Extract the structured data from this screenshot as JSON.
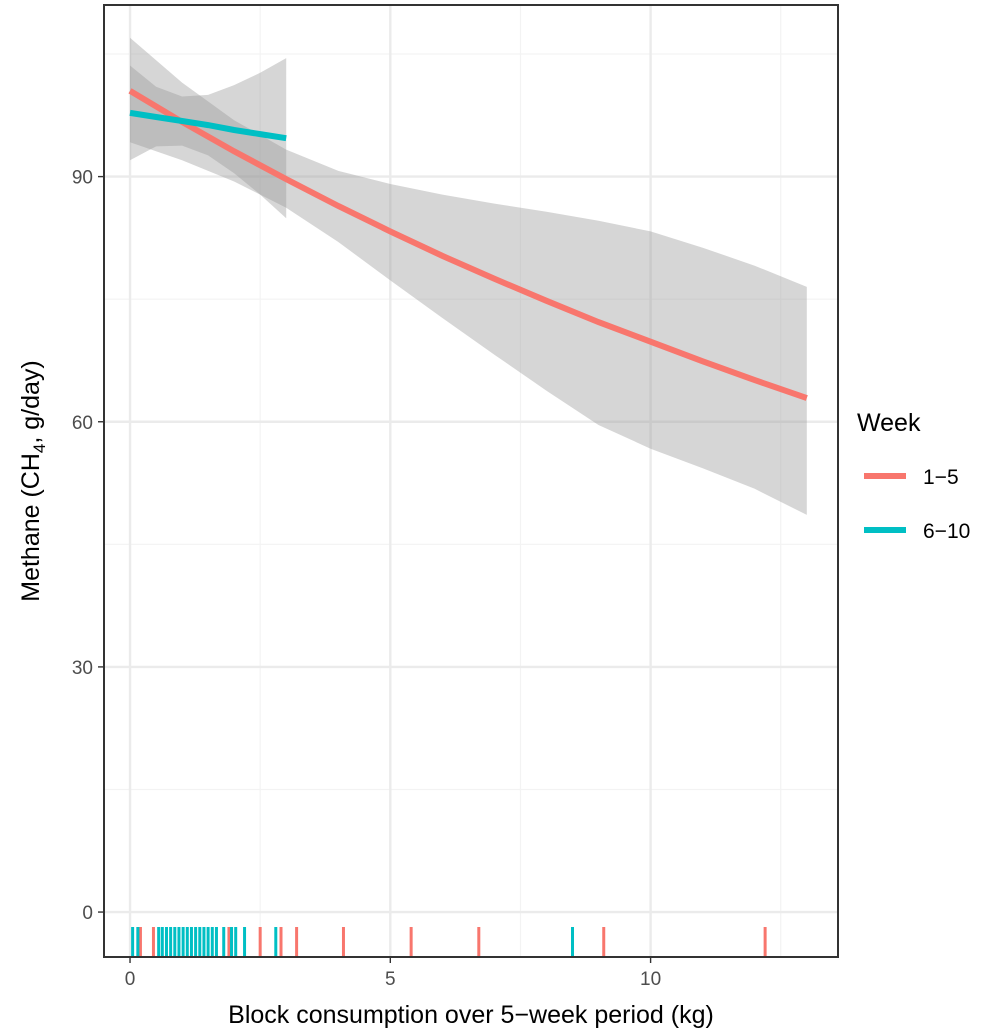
{
  "chart_data": {
    "type": "line",
    "title": "",
    "xlabel": "Block consumption over 5−week period (kg)",
    "ylabel_main": "Methane  (CH",
    "ylabel_sub": "4",
    "ylabel_rest": ", g/day)",
    "xlim": [
      -0.5,
      13.6
    ],
    "ylim": [
      -5.5,
      111
    ],
    "x_ticks": [
      0,
      5,
      10
    ],
    "x_tick_labels": [
      "0",
      "5",
      "10"
    ],
    "y_ticks": [
      0,
      30,
      60,
      90
    ],
    "y_tick_labels": [
      "0",
      "30",
      "60",
      "90"
    ],
    "grid": true,
    "legend": {
      "title": "Week",
      "position": "right",
      "entries": [
        {
          "label": "1−5",
          "color": "#F8766D"
        },
        {
          "label": "6−10",
          "color": "#00BFC4"
        }
      ]
    },
    "series": [
      {
        "name": "1−5",
        "color": "#F8766D",
        "x": [
          0,
          1,
          2,
          3,
          4,
          5,
          6,
          7,
          8,
          9,
          10,
          11,
          12,
          13
        ],
        "y": [
          100.5,
          96.7,
          93.1,
          89.7,
          86.4,
          83.3,
          80.3,
          77.5,
          74.8,
          72.2,
          69.8,
          67.4,
          65.1,
          62.9
        ],
        "ci_lower": [
          94.2,
          92.0,
          89.4,
          86.2,
          82.0,
          77.3,
          72.7,
          68.2,
          63.8,
          59.6,
          56.7,
          54.3,
          51.8,
          48.6
        ],
        "ci_upper": [
          107.0,
          101.5,
          96.9,
          93.3,
          90.7,
          89.1,
          87.8,
          86.7,
          85.7,
          84.6,
          83.3,
          81.3,
          79.1,
          76.5
        ]
      },
      {
        "name": "6−10",
        "color": "#00BFC4",
        "x": [
          0,
          0.5,
          1,
          1.5,
          2,
          2.5,
          3
        ],
        "y": [
          97.8,
          97.3,
          96.8,
          96.3,
          95.7,
          95.2,
          94.7
        ],
        "ci_lower": [
          92.0,
          93.7,
          93.8,
          92.6,
          90.4,
          87.8,
          84.9
        ],
        "ci_upper": [
          103.6,
          101.0,
          99.8,
          100.0,
          101.2,
          102.7,
          104.5
        ]
      }
    ],
    "rug": [
      {
        "series": "1−5",
        "color": "#F8766D",
        "x": [
          0.2,
          0.45,
          1.9,
          2.5,
          2.9,
          3.2,
          4.1,
          5.4,
          6.7,
          9.1,
          12.2
        ]
      },
      {
        "series": "6−10",
        "color": "#00BFC4",
        "x": [
          0.05,
          0.15,
          0.55,
          0.62,
          0.7,
          0.78,
          0.86,
          0.94,
          1.02,
          1.1,
          1.18,
          1.26,
          1.34,
          1.42,
          1.5,
          1.58,
          1.66,
          1.8,
          1.95,
          2.03,
          2.2,
          2.8,
          8.5
        ]
      }
    ]
  }
}
